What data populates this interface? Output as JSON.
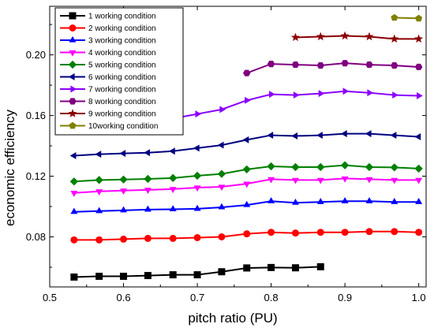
{
  "chart_data": {
    "type": "line",
    "title": "",
    "xlabel": "pitch ratio (PU)",
    "ylabel": "economic efficiency",
    "xlim": [
      0.5,
      1.01
    ],
    "ylim": [
      0.047,
      0.232
    ],
    "xticks": [
      0.5,
      0.6,
      0.7,
      0.8,
      0.9,
      1.0
    ],
    "xtick_labels": [
      "0.5",
      "0.6",
      "0.7",
      "0.8",
      "0.9",
      "1.0"
    ],
    "yticks": [
      0.08,
      0.12,
      0.16,
      0.2
    ],
    "ytick_labels": [
      "0.08",
      "0.12",
      "0.16",
      "0.20"
    ],
    "grid": false,
    "legend_position": "top-left",
    "series": [
      {
        "name": "1 working condition",
        "color": "#000000",
        "marker": "square",
        "x": [
          0.533,
          0.567,
          0.6,
          0.633,
          0.667,
          0.7,
          0.733,
          0.767,
          0.8,
          0.833,
          0.867
        ],
        "y": [
          0.0535,
          0.054,
          0.054,
          0.0545,
          0.055,
          0.055,
          0.057,
          0.0595,
          0.0598,
          0.0596,
          0.0603
        ]
      },
      {
        "name": "2 working condition",
        "color": "#ff0000",
        "marker": "circle",
        "x": [
          0.533,
          0.567,
          0.6,
          0.633,
          0.667,
          0.7,
          0.733,
          0.767,
          0.8,
          0.833,
          0.867,
          0.9,
          0.933,
          0.967,
          1.0
        ],
        "y": [
          0.078,
          0.078,
          0.0785,
          0.079,
          0.079,
          0.0795,
          0.08,
          0.082,
          0.083,
          0.0825,
          0.083,
          0.083,
          0.0835,
          0.0835,
          0.083
        ]
      },
      {
        "name": "3 working condition",
        "color": "#0000ff",
        "marker": "triangle-up",
        "x": [
          0.533,
          0.567,
          0.6,
          0.633,
          0.667,
          0.7,
          0.733,
          0.767,
          0.8,
          0.833,
          0.867,
          0.9,
          0.933,
          0.967,
          1.0
        ],
        "y": [
          0.0965,
          0.097,
          0.0975,
          0.098,
          0.0982,
          0.0985,
          0.0995,
          0.101,
          0.1035,
          0.1025,
          0.103,
          0.1035,
          0.1035,
          0.103,
          0.103
        ]
      },
      {
        "name": "4 working condition",
        "color": "#ff00ff",
        "marker": "triangle-down",
        "x": [
          0.533,
          0.567,
          0.6,
          0.633,
          0.667,
          0.7,
          0.733,
          0.767,
          0.8,
          0.833,
          0.867,
          0.9,
          0.933,
          0.967,
          1.0
        ],
        "y": [
          0.109,
          0.11,
          0.1105,
          0.111,
          0.1115,
          0.1125,
          0.113,
          0.115,
          0.118,
          0.1175,
          0.1175,
          0.1185,
          0.118,
          0.1175,
          0.1175
        ]
      },
      {
        "name": "5 working condition",
        "color": "#008000",
        "marker": "diamond",
        "x": [
          0.533,
          0.567,
          0.6,
          0.633,
          0.667,
          0.7,
          0.733,
          0.767,
          0.8,
          0.833,
          0.867,
          0.9,
          0.933,
          0.967,
          1.0
        ],
        "y": [
          0.1165,
          0.1175,
          0.1178,
          0.1182,
          0.1188,
          0.1203,
          0.1215,
          0.1245,
          0.1265,
          0.126,
          0.126,
          0.1272,
          0.126,
          0.1258,
          0.125
        ]
      },
      {
        "name": "6 working condition",
        "color": "#000080",
        "marker": "triangle-left",
        "x": [
          0.533,
          0.567,
          0.6,
          0.633,
          0.667,
          0.7,
          0.733,
          0.767,
          0.8,
          0.833,
          0.867,
          0.9,
          0.933,
          0.967,
          1.0
        ],
        "y": [
          0.1335,
          0.1345,
          0.135,
          0.1355,
          0.1365,
          0.1385,
          0.1405,
          0.144,
          0.147,
          0.1465,
          0.147,
          0.148,
          0.148,
          0.147,
          0.146
        ]
      },
      {
        "name": "7 working condition",
        "color": "#8b00ff",
        "marker": "triangle-right",
        "x": [
          0.667,
          0.7,
          0.733,
          0.767,
          0.8,
          0.833,
          0.867,
          0.9,
          0.933,
          0.967,
          1.0
        ],
        "y": [
          0.158,
          0.161,
          0.164,
          0.17,
          0.174,
          0.1735,
          0.1745,
          0.176,
          0.175,
          0.1735,
          0.173
        ]
      },
      {
        "name": "8 working condition",
        "color": "#800080",
        "marker": "hexagon",
        "x": [
          0.767,
          0.8,
          0.833,
          0.867,
          0.9,
          0.933,
          0.967,
          1.0
        ],
        "y": [
          0.188,
          0.194,
          0.1935,
          0.193,
          0.1945,
          0.1935,
          0.193,
          0.192
        ]
      },
      {
        "name": "9 working condition",
        "color": "#8b0000",
        "marker": "star",
        "x": [
          0.833,
          0.867,
          0.9,
          0.933,
          0.967,
          1.0
        ],
        "y": [
          0.2115,
          0.212,
          0.2125,
          0.212,
          0.2105,
          0.2105
        ]
      },
      {
        "name": "10working condition",
        "color": "#808000",
        "marker": "pentagon",
        "x": [
          0.967,
          1.0
        ],
        "y": [
          0.2245,
          0.224
        ]
      }
    ]
  }
}
